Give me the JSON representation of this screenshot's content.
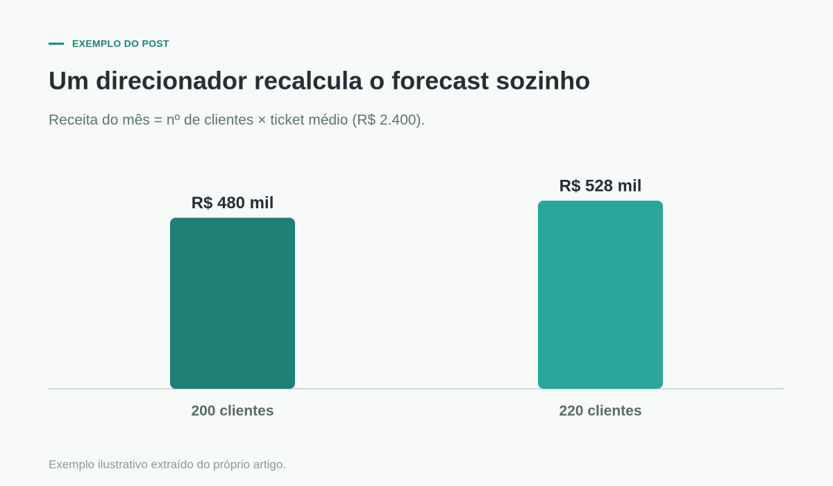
{
  "chart_data": {
    "type": "bar",
    "eyebrow": "EXEMPLO DO POST",
    "title": "Um direcionador recalcula o forecast sozinho",
    "subtitle": "Receita do mês = nº de clientes × ticket médio (R$ 2.400).",
    "categories": [
      "200 clientes",
      "220 clientes"
    ],
    "values": [
      480,
      528
    ],
    "value_labels": [
      "R$ 480 mil",
      "R$ 528 mil"
    ],
    "colors": [
      "#1e8076",
      "#2ba69c"
    ],
    "ylim": [
      0,
      600
    ],
    "footnote": "Exemplo ilustrativo extraído do próprio artigo."
  }
}
